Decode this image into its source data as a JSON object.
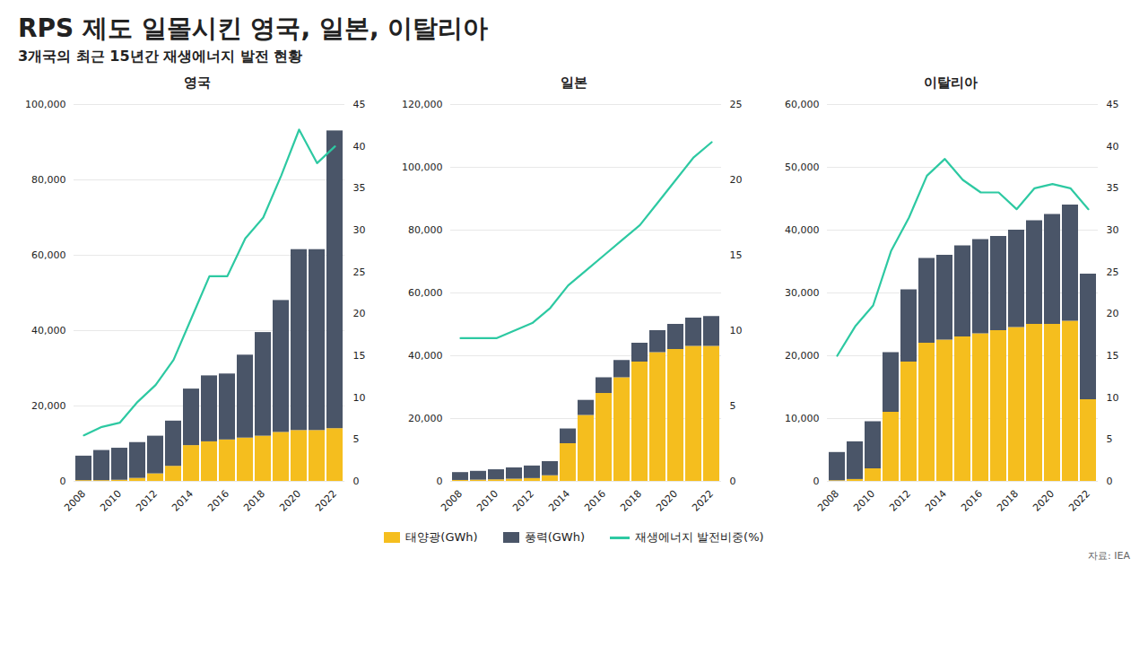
{
  "title": "RPS 제도 일몰시킨 영국, 일본, 이탈리아",
  "subtitle": "3개국의 최근 15년간 재생에너지 발전 현황",
  "caption": "자료: IEA",
  "chart_data": [
    {
      "type": "bar",
      "title": "영국",
      "categories": [
        "2008",
        null,
        "2010",
        null,
        "2012",
        null,
        "2014",
        null,
        "2016",
        null,
        "2018",
        null,
        "2020",
        null,
        "2022"
      ],
      "series": [
        {
          "name": "태양광(GWh)",
          "color": "#F5BE1E",
          "values": [
            200,
            200,
            300,
            800,
            2000,
            4000,
            9500,
            10500,
            11000,
            11500,
            12000,
            13000,
            13500,
            13500,
            14000
          ]
        },
        {
          "name": "풍력(GWh)",
          "color": "#4A5568",
          "values": [
            6500,
            8000,
            8500,
            9500,
            10000,
            12000,
            15000,
            17500,
            17500,
            22000,
            27500,
            35000,
            48000,
            48000,
            79000
          ]
        },
        {
          "name": "재생에너지 발전비중(%)",
          "type": "line",
          "axis": "y2",
          "color": "#2DC9A2",
          "values": [
            5.5,
            6.5,
            7.0,
            9.5,
            11.5,
            14.5,
            19.5,
            24.5,
            24.5,
            29.0,
            31.5,
            36.5,
            42.0,
            38.0,
            40.0
          ]
        }
      ],
      "stacked": true,
      "ylim": [
        0,
        100000
      ],
      "yticks": [
        0,
        {
          "value": 20000,
          "label": "20,000"
        },
        {
          "value": 40000,
          "label": "40,000"
        },
        {
          "value": 60000,
          "label": "60,000"
        },
        {
          "value": 80000,
          "label": "80,000"
        },
        {
          "value": 100000,
          "label": "100,000"
        }
      ],
      "y2lim": [
        0,
        45
      ],
      "y2ticks": [
        0,
        5,
        10,
        15,
        20,
        25,
        30,
        35,
        40,
        45
      ],
      "grid": true,
      "legend": "bottom"
    },
    {
      "type": "bar",
      "title": "일본",
      "categories": [
        "2008",
        null,
        "2010",
        null,
        "2012",
        null,
        "2014",
        null,
        "2016",
        null,
        "2018",
        null,
        "2020",
        null,
        "2022"
      ],
      "series": [
        {
          "name": "태양광(GWh)",
          "color": "#F5BE1E",
          "values": [
            300,
            400,
            500,
            700,
            900,
            1800,
            12000,
            21000,
            28000,
            33000,
            38000,
            41000,
            42000,
            43000,
            43000
          ]
        },
        {
          "name": "풍력(GWh)",
          "color": "#4A5568",
          "values": [
            2500,
            2800,
            3200,
            3600,
            4000,
            4500,
            4700,
            4800,
            5000,
            5500,
            6000,
            7000,
            8000,
            9000,
            9500
          ]
        },
        {
          "name": "재생에너지 발전비중(%)",
          "type": "line",
          "axis": "y2",
          "color": "#2DC9A2",
          "values": [
            9.5,
            9.5,
            9.5,
            10.0,
            10.5,
            11.5,
            13.0,
            14.0,
            15.0,
            16.0,
            17.0,
            18.5,
            20.0,
            21.5,
            22.5
          ]
        }
      ],
      "stacked": true,
      "ylim": [
        0,
        120000
      ],
      "yticks": [
        0,
        {
          "value": 20000,
          "label": "20,000"
        },
        {
          "value": 40000,
          "label": "40,000"
        },
        {
          "value": 60000,
          "label": "60,000"
        },
        {
          "value": 80000,
          "label": "80,000"
        },
        {
          "value": 100000,
          "label": "100,000"
        },
        {
          "value": 120000,
          "label": "120,000"
        }
      ],
      "y2lim": [
        0,
        25
      ],
      "y2ticks": [
        0,
        5,
        10,
        15,
        20,
        25
      ],
      "grid": true,
      "legend": "bottom"
    },
    {
      "type": "bar",
      "title": "이탈리아",
      "categories": [
        "2008",
        null,
        "2010",
        null,
        "2012",
        null,
        "2014",
        null,
        "2016",
        null,
        "2018",
        null,
        "2020",
        null,
        "2022"
      ],
      "series": [
        {
          "name": "태양광(GWh)",
          "color": "#F5BE1E",
          "values": [
            100,
            300,
            2000,
            11000,
            19000,
            22000,
            22500,
            23000,
            23500,
            24000,
            24500,
            25000,
            25000,
            25500,
            13000
          ]
        },
        {
          "name": "풍력(GWh)",
          "color": "#4A5568",
          "values": [
            4500,
            6000,
            7500,
            9500,
            11500,
            13500,
            13500,
            14500,
            15000,
            15000,
            15500,
            16500,
            17500,
            18500,
            20000
          ]
        },
        {
          "name": "재생에너지 발전비중(%)",
          "type": "line",
          "axis": "y2",
          "color": "#2DC9A2",
          "values": [
            15.0,
            18.5,
            21.0,
            27.5,
            31.5,
            36.5,
            38.5,
            36.0,
            34.5,
            34.5,
            32.5,
            35.0,
            35.5,
            35.0,
            32.5
          ]
        }
      ],
      "stacked": true,
      "ylim": [
        0,
        60000
      ],
      "yticks": [
        0,
        {
          "value": 10000,
          "label": "10,000"
        },
        {
          "value": 20000,
          "label": "20,000"
        },
        {
          "value": 30000,
          "label": "30,000"
        },
        {
          "value": 40000,
          "label": "40,000"
        },
        {
          "value": 50000,
          "label": "50,000"
        },
        {
          "value": 60000,
          "label": "60,000"
        }
      ],
      "y2lim": [
        0,
        45
      ],
      "y2ticks": [
        0,
        5,
        10,
        15,
        20,
        25,
        30,
        35,
        40,
        45
      ],
      "grid": true,
      "legend": "bottom"
    }
  ]
}
